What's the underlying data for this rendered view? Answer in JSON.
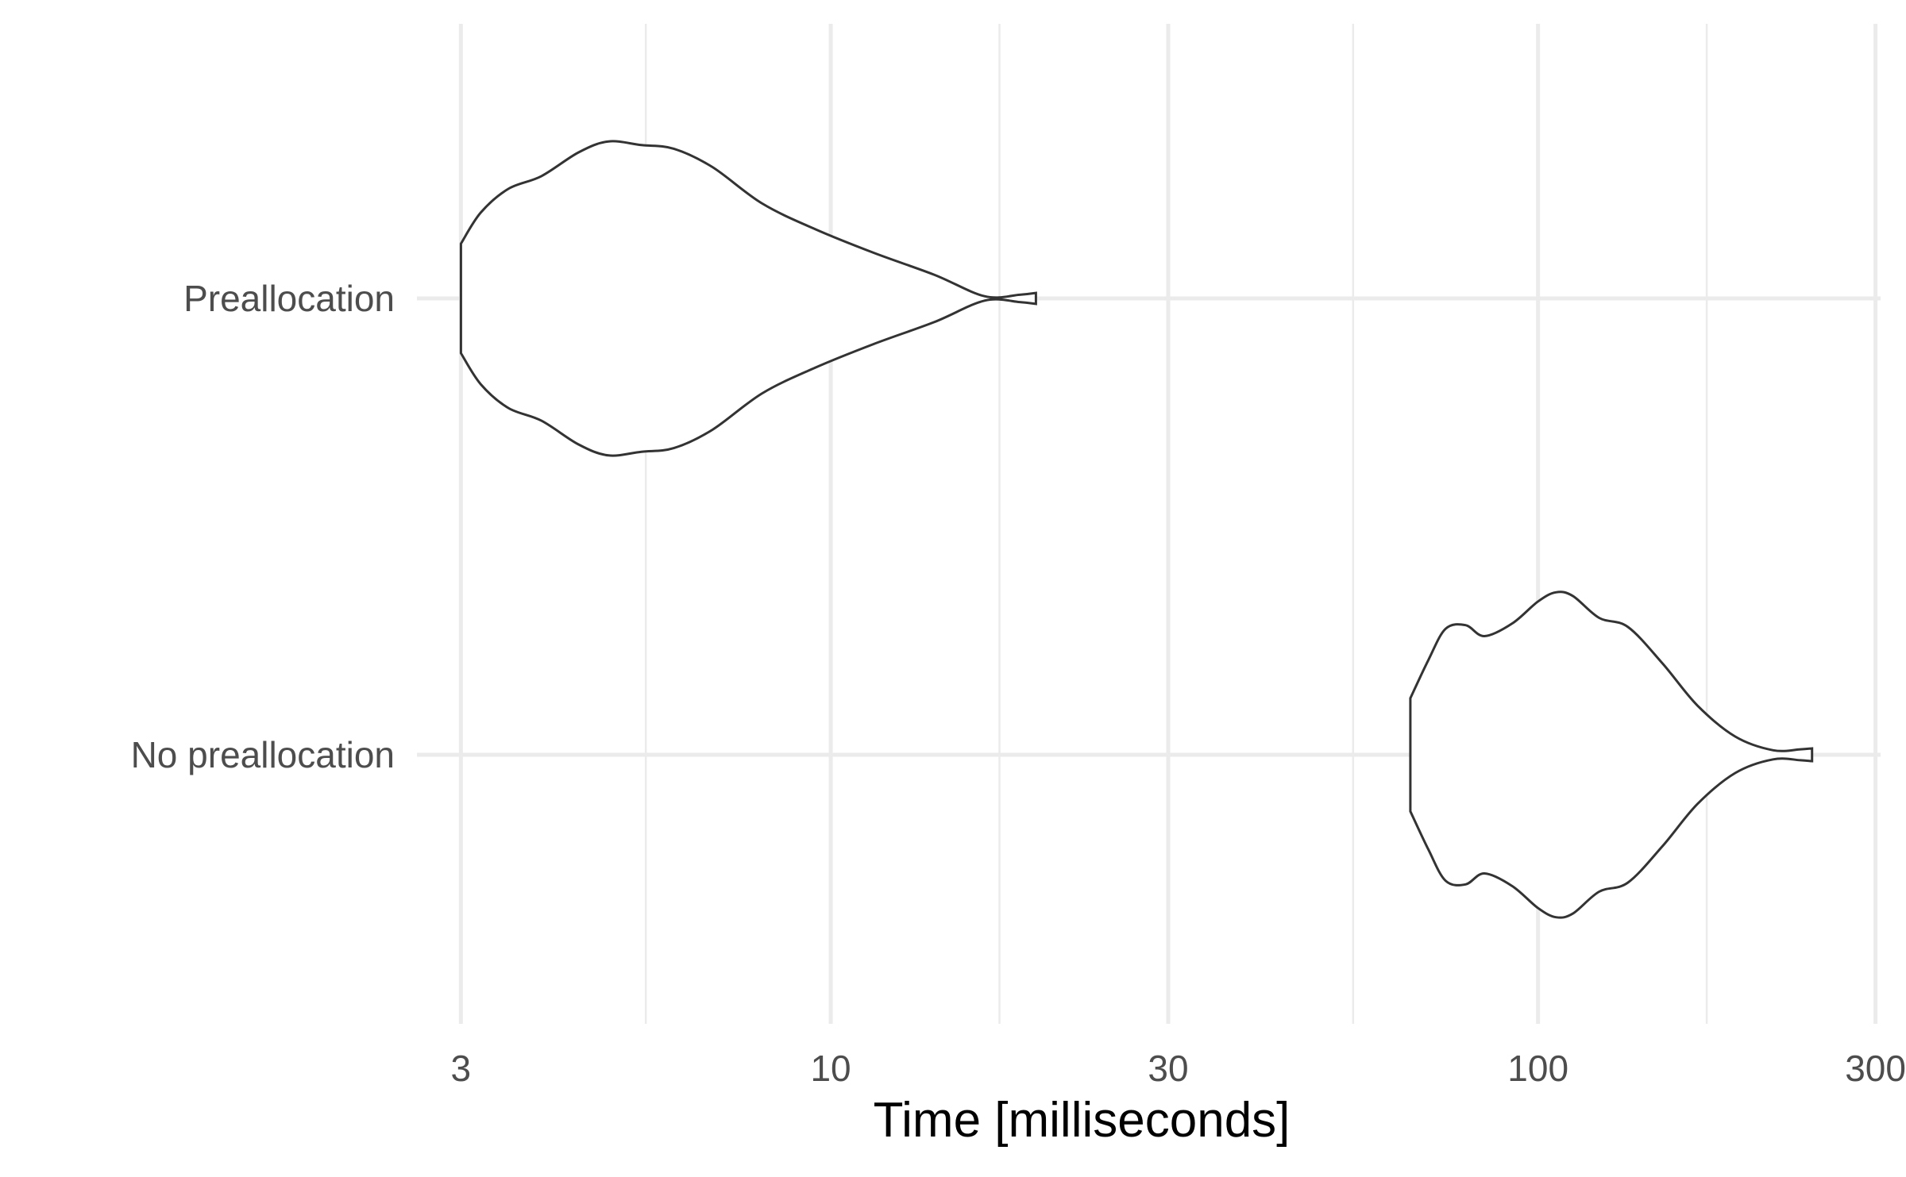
{
  "chart_data": {
    "type": "violin",
    "orientation": "horizontal",
    "xlabel": "Time [milliseconds]",
    "ylabel": "",
    "x_scale": "log10",
    "xlim": [
      2.6,
      305
    ],
    "x_ticks": [
      {
        "value": 3,
        "label": "3"
      },
      {
        "value": 10,
        "label": "10"
      },
      {
        "value": 30,
        "label": "30"
      },
      {
        "value": 100,
        "label": "100"
      },
      {
        "value": 300,
        "label": "300"
      }
    ],
    "x_minor_ticks": [
      5.477,
      17.32,
      54.77,
      173.2
    ],
    "categories": [
      "Preallocation",
      "No preallocation"
    ],
    "grid": true,
    "series": [
      {
        "category": "Preallocation",
        "min": 3.0,
        "max": 19.5,
        "density": [
          [
            3.0,
            0.3
          ],
          [
            3.2,
            0.47
          ],
          [
            3.5,
            0.6
          ],
          [
            3.9,
            0.67
          ],
          [
            4.4,
            0.8
          ],
          [
            4.85,
            0.86
          ],
          [
            5.4,
            0.84
          ],
          [
            6.0,
            0.82
          ],
          [
            6.8,
            0.72
          ],
          [
            8.0,
            0.52
          ],
          [
            9.5,
            0.38
          ],
          [
            11.5,
            0.25
          ],
          [
            14.0,
            0.13
          ],
          [
            16.5,
            0.012
          ],
          [
            18.5,
            0.02
          ],
          [
            19.5,
            0.03
          ]
        ]
      },
      {
        "category": "No preallocation",
        "min": 66,
        "max": 244,
        "density": [
          [
            66,
            0.31
          ],
          [
            70,
            0.52
          ],
          [
            74,
            0.69
          ],
          [
            79,
            0.71
          ],
          [
            84,
            0.65
          ],
          [
            92,
            0.72
          ],
          [
            100,
            0.84
          ],
          [
            106,
            0.89
          ],
          [
            112,
            0.87
          ],
          [
            122,
            0.75
          ],
          [
            134,
            0.7
          ],
          [
            150,
            0.5
          ],
          [
            168,
            0.27
          ],
          [
            190,
            0.1
          ],
          [
            215,
            0.025
          ],
          [
            235,
            0.03
          ],
          [
            244,
            0.035
          ]
        ]
      }
    ]
  }
}
